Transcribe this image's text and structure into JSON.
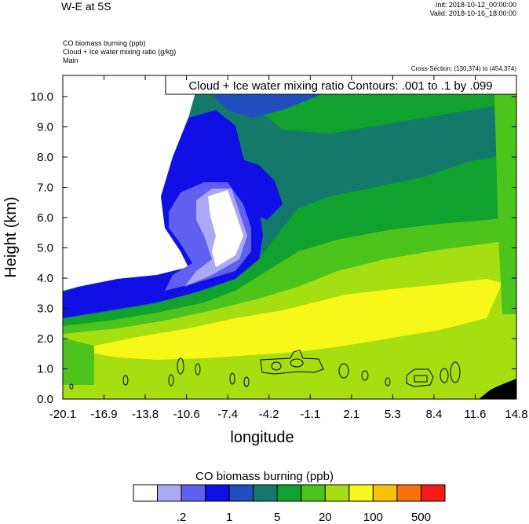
{
  "header": {
    "title": "W-E at 5S",
    "init": "Init: 2018-10-12_00:00:00",
    "valid": "Valid: 2018-10-16_18:00:00",
    "field_lines": [
      "CO biomass burning   (ppb)",
      "Cloud + Ice water mixing ratio   (g/kg)",
      "Main"
    ],
    "cross_section": "Cross-Section: (130,374) to (454,374)"
  },
  "chart_data": {
    "type": "heatmap",
    "title": "W-E at 5S",
    "contour_label": "Cloud + Ice water mixing ratio Contours: .001 to .1 by .099",
    "xlabel": "longitude",
    "ylabel": "Height (km)",
    "xlim": [
      -20.1,
      14.8
    ],
    "ylim": [
      0,
      10.7
    ],
    "x_ticks": [
      "-20.1",
      "-16.9",
      "-13.8",
      "-10.6",
      "-7.4",
      "-4.2",
      "-1.1",
      "2.1",
      "5.3",
      "8.4",
      "11.6",
      "14.8"
    ],
    "y_ticks": [
      "0.0",
      "1.0",
      "2.0",
      "3.0",
      "4.0",
      "5.0",
      "6.0",
      "7.0",
      "8.0",
      "9.0",
      "10.0"
    ],
    "y_tick_values": [
      0,
      1,
      2,
      3,
      4,
      5,
      6,
      7,
      8,
      9,
      10
    ],
    "colorbar": {
      "title": "CO biomass burning  (ppb)",
      "colors": [
        "#ffffff",
        "#a9a9f5",
        "#6060f0",
        "#1010e6",
        "#1f4fbf",
        "#137a6b",
        "#11a12e",
        "#4cc41c",
        "#a5df12",
        "#f7f71a",
        "#f9c10a",
        "#f9710a",
        "#f91a1a"
      ],
      "labels": [
        ".2",
        "1",
        "5",
        "20",
        "100",
        "500"
      ]
    },
    "terrain_color": "#000000"
  }
}
